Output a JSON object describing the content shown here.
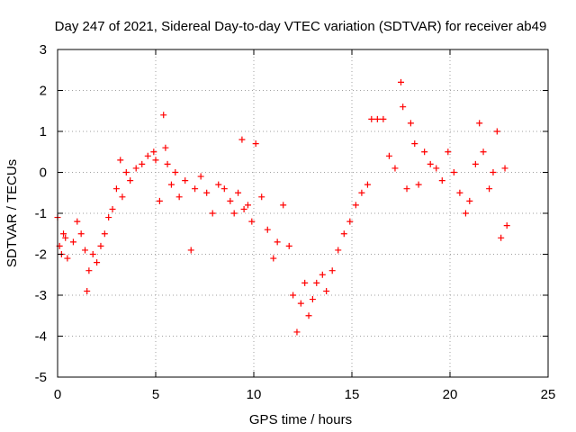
{
  "chart_data": {
    "type": "scatter",
    "title": "Day 247 of 2021, Sidereal Day-to-day VTEC variation (SDTVAR) for receiver ab49",
    "xlabel": "GPS time / hours",
    "ylabel": "SDTVAR / TECUs",
    "xlim": [
      0,
      25
    ],
    "ylim": [
      -5,
      3
    ],
    "x_ticks": [
      0,
      5,
      10,
      15,
      20,
      25
    ],
    "y_ticks": [
      -5,
      -4,
      -3,
      -2,
      -1,
      0,
      1,
      2,
      3
    ],
    "x_tick_labels": [
      "0",
      "5",
      "10",
      "15",
      "20",
      "25"
    ],
    "y_tick_labels": [
      "-5",
      "-4",
      "-3",
      "-2",
      "-1",
      "0",
      "1",
      "2",
      "3"
    ],
    "grid": true,
    "marker": "plus",
    "series_color": "#ff0000",
    "series": [
      {
        "name": "SDTVAR",
        "x": [
          0.0,
          0.1,
          0.2,
          0.3,
          0.4,
          0.5,
          0.8,
          1.0,
          1.2,
          1.4,
          1.5,
          1.6,
          1.8,
          2.0,
          2.2,
          2.4,
          2.6,
          2.8,
          3.0,
          3.2,
          3.3,
          3.5,
          3.7,
          4.0,
          4.3,
          4.6,
          4.9,
          5.0,
          5.2,
          5.4,
          5.5,
          5.6,
          5.8,
          6.0,
          6.2,
          6.5,
          6.8,
          7.0,
          7.3,
          7.6,
          7.9,
          8.2,
          8.5,
          8.8,
          9.0,
          9.2,
          9.4,
          9.5,
          9.7,
          9.9,
          10.1,
          10.4,
          10.7,
          11.0,
          11.2,
          11.5,
          11.8,
          12.0,
          12.2,
          12.4,
          12.6,
          12.8,
          13.0,
          13.2,
          13.5,
          13.7,
          14.0,
          14.3,
          14.6,
          14.9,
          15.2,
          15.5,
          15.8,
          16.0,
          16.3,
          16.6,
          16.9,
          17.2,
          17.5,
          17.6,
          17.8,
          18.0,
          18.2,
          18.4,
          18.7,
          19.0,
          19.3,
          19.6,
          19.9,
          20.2,
          20.5,
          20.8,
          21.0,
          21.3,
          21.5,
          21.7,
          22.0,
          22.2,
          22.4,
          22.6,
          22.8,
          22.9
        ],
        "y": [
          -1.1,
          -1.8,
          -2.0,
          -1.5,
          -1.6,
          -2.1,
          -1.7,
          -1.2,
          -1.5,
          -1.9,
          -2.9,
          -2.4,
          -2.0,
          -2.2,
          -1.8,
          -1.5,
          -1.1,
          -0.9,
          -0.4,
          0.3,
          -0.6,
          0.0,
          -0.2,
          0.1,
          0.2,
          0.4,
          0.5,
          0.3,
          -0.7,
          1.4,
          0.6,
          0.2,
          -0.3,
          0.0,
          -0.6,
          -0.2,
          -1.9,
          -0.4,
          -0.1,
          -0.5,
          -1.0,
          -0.3,
          -0.4,
          -0.7,
          -1.0,
          -0.5,
          0.8,
          -0.9,
          -0.8,
          -1.2,
          0.7,
          -0.6,
          -1.4,
          -2.1,
          -1.7,
          -0.8,
          -1.8,
          -3.0,
          -3.9,
          -3.2,
          -2.7,
          -3.5,
          -3.1,
          -2.7,
          -2.5,
          -2.9,
          -2.4,
          -1.9,
          -1.5,
          -1.2,
          -0.8,
          -0.5,
          -0.3,
          1.3,
          1.3,
          1.3,
          0.4,
          0.1,
          2.2,
          1.6,
          -0.4,
          1.2,
          0.7,
          -0.3,
          0.5,
          0.2,
          0.1,
          -0.2,
          0.5,
          0.0,
          -0.5,
          -1.0,
          -0.7,
          0.2,
          1.2,
          0.5,
          -0.4,
          0.0,
          1.0,
          -1.6,
          0.1,
          -1.3
        ]
      }
    ]
  }
}
